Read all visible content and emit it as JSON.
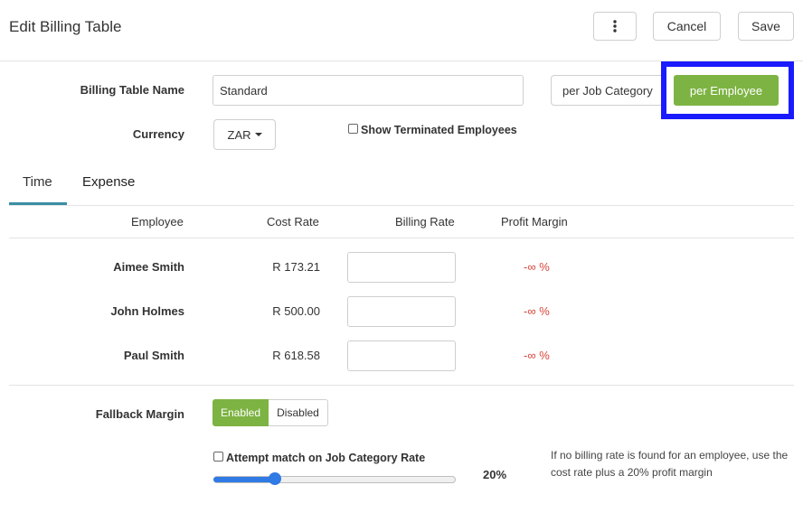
{
  "header": {
    "title": "Edit Billing Table",
    "more_icon": "more-vertical-icon",
    "cancel_label": "Cancel",
    "save_label": "Save"
  },
  "form": {
    "name_label": "Billing Table Name",
    "name_value": "Standard",
    "mode_options": [
      "per Job Category",
      "per Employee"
    ],
    "mode_selected": "per Employee",
    "currency_label": "Currency",
    "currency_value": "ZAR",
    "show_terminated_label": "Show Terminated Employees"
  },
  "tabs": [
    {
      "label": "Time",
      "active": true
    },
    {
      "label": "Expense",
      "active": false
    }
  ],
  "table": {
    "headers": [
      "Employee",
      "Cost Rate",
      "Billing Rate",
      "Profit Margin"
    ],
    "rows": [
      {
        "employee": "Aimee Smith",
        "cost_rate": "R 173.21",
        "billing_rate": "",
        "profit_margin": "-∞ %"
      },
      {
        "employee": "John Holmes",
        "cost_rate": "R 500.00",
        "billing_rate": "",
        "profit_margin": "-∞ %"
      },
      {
        "employee": "Paul Smith",
        "cost_rate": "R 618.58",
        "billing_rate": "",
        "profit_margin": "-∞ %"
      }
    ]
  },
  "fallback": {
    "label": "Fallback Margin",
    "enabled_label": "Enabled",
    "disabled_label": "Disabled",
    "selected": "Enabled",
    "attempt_match_label": "Attempt match on Job Category Rate",
    "slider_value": 0.2,
    "slider_display": "20%",
    "help_line1": "If no billing rate is found for an employee, use the",
    "help_line2": "cost rate plus a 20% profit margin"
  },
  "colors": {
    "accent_green": "#7db343",
    "highlight_blue": "#1a1aff",
    "tab_underline": "#3b8fa3",
    "negative_red": "#d9463b",
    "slider_blue": "#2f7ae5"
  }
}
